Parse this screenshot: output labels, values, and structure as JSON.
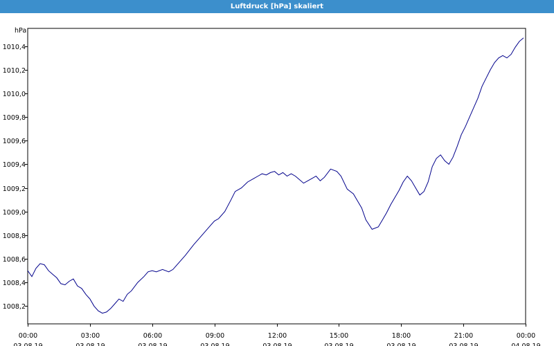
{
  "window": {
    "title": "Luftdruck [hPa] skaliert"
  },
  "chart_data": {
    "type": "line",
    "title": "Luftdruck [hPa] skaliert",
    "ylabel": "hPa",
    "xlabel": "",
    "ylim": [
      1008.05,
      1010.55
    ],
    "grid": true,
    "y_ticks": [
      "1008,2",
      "1008,4",
      "1008,6",
      "1008,8",
      "1009,0",
      "1009,2",
      "1009,4",
      "1009,6",
      "1009,8",
      "1010,0",
      "1010,2",
      "1010,4"
    ],
    "x_ticks": [
      {
        "time": "00:00",
        "date": "03.08.19"
      },
      {
        "time": "03:00",
        "date": "03.08.19"
      },
      {
        "time": "06:00",
        "date": "03.08.19"
      },
      {
        "time": "09:00",
        "date": "03.08.19"
      },
      {
        "time": "12:00",
        "date": "03.08.19"
      },
      {
        "time": "15:00",
        "date": "03.08.19"
      },
      {
        "time": "18:00",
        "date": "03.08.19"
      },
      {
        "time": "21:00",
        "date": "03.08.19"
      },
      {
        "time": "00:00",
        "date": "04.08.19"
      }
    ],
    "x_hours": [
      0,
      0.2,
      0.4,
      0.6,
      0.8,
      1.0,
      1.2,
      1.4,
      1.6,
      1.8,
      2.0,
      2.2,
      2.4,
      2.6,
      2.8,
      3.0,
      3.2,
      3.4,
      3.6,
      3.8,
      4.0,
      4.2,
      4.4,
      4.6,
      4.8,
      5.0,
      5.3,
      5.6,
      5.8,
      6.0,
      6.2,
      6.5,
      6.8,
      7.0,
      7.3,
      7.6,
      8.0,
      8.3,
      8.6,
      8.8,
      9.0,
      9.2,
      9.5,
      9.8,
      10.0,
      10.3,
      10.6,
      10.9,
      11.1,
      11.3,
      11.5,
      11.7,
      11.9,
      12.1,
      12.3,
      12.5,
      12.7,
      12.9,
      13.1,
      13.3,
      13.5,
      13.7,
      13.9,
      14.1,
      14.3,
      14.6,
      14.9,
      15.1,
      15.4,
      15.7,
      15.9,
      16.1,
      16.3,
      16.6,
      16.9,
      17.1,
      17.3,
      17.5,
      17.7,
      17.9,
      18.1,
      18.3,
      18.5,
      18.7,
      18.9,
      19.1,
      19.3,
      19.5,
      19.7,
      19.9,
      20.1,
      20.3,
      20.5,
      20.7,
      20.9,
      21.1,
      21.3,
      21.5,
      21.7,
      21.9,
      22.1,
      22.3,
      22.5,
      22.7,
      22.9,
      23.1,
      23.3,
      23.5,
      23.7,
      23.9
    ],
    "series": [
      {
        "color": "#00008b",
        "values": [
          1008.5,
          1008.45,
          1008.52,
          1008.56,
          1008.55,
          1008.5,
          1008.47,
          1008.44,
          1008.39,
          1008.38,
          1008.41,
          1008.43,
          1008.37,
          1008.35,
          1008.3,
          1008.26,
          1008.2,
          1008.16,
          1008.14,
          1008.15,
          1008.18,
          1008.22,
          1008.26,
          1008.24,
          1008.3,
          1008.33,
          1008.4,
          1008.45,
          1008.49,
          1008.5,
          1008.49,
          1008.51,
          1008.49,
          1008.51,
          1008.57,
          1008.63,
          1008.72,
          1008.78,
          1008.84,
          1008.88,
          1008.92,
          1008.94,
          1009.0,
          1009.1,
          1009.17,
          1009.2,
          1009.25,
          1009.28,
          1009.3,
          1009.32,
          1009.31,
          1009.33,
          1009.34,
          1009.31,
          1009.33,
          1009.3,
          1009.32,
          1009.3,
          1009.27,
          1009.24,
          1009.26,
          1009.28,
          1009.3,
          1009.26,
          1009.29,
          1009.36,
          1009.34,
          1009.3,
          1009.19,
          1009.15,
          1009.09,
          1009.03,
          1008.93,
          1008.85,
          1008.87,
          1008.93,
          1008.99,
          1009.06,
          1009.12,
          1009.18,
          1009.25,
          1009.3,
          1009.26,
          1009.2,
          1009.14,
          1009.17,
          1009.25,
          1009.38,
          1009.45,
          1009.48,
          1009.43,
          1009.4,
          1009.46,
          1009.55,
          1009.65,
          1009.72,
          1009.8,
          1009.88,
          1009.96,
          1010.06,
          1010.13,
          1010.2,
          1010.26,
          1010.3,
          1010.32,
          1010.3,
          1010.33,
          1010.39,
          1010.44,
          1010.47
        ]
      }
    ]
  }
}
